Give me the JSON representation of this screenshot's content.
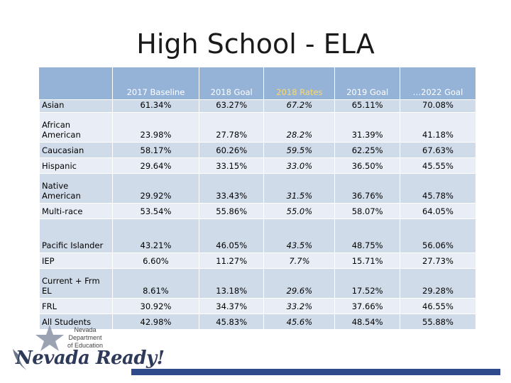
{
  "title": "High School - ELA",
  "table": {
    "headers": [
      "",
      "2017 Baseline",
      "2018 Goal",
      "2018 Rates",
      "2019 Goal",
      "…2022 Goal"
    ],
    "rows": [
      {
        "label": "Asian",
        "values": [
          "61.34%",
          "63.27%",
          "67.2%",
          "65.11%",
          "70.08%"
        ]
      },
      {
        "label": "African American",
        "values": [
          "23.98%",
          "27.78%",
          "28.2%",
          "31.39%",
          "41.18%"
        ]
      },
      {
        "label": "Caucasian",
        "values": [
          "58.17%",
          "60.26%",
          "59.5%",
          "62.25%",
          "67.63%"
        ]
      },
      {
        "label": "Hispanic",
        "values": [
          "29.64%",
          "33.15%",
          "33.0%",
          "36.50%",
          "45.55%"
        ]
      },
      {
        "label": "Native American",
        "values": [
          "29.92%",
          "33.43%",
          "31.5%",
          "36.76%",
          "45.78%"
        ]
      },
      {
        "label": "Multi-race",
        "values": [
          "53.54%",
          "55.86%",
          "55.0%",
          "58.07%",
          "64.05%"
        ]
      },
      {
        "label": "Pacific Islander",
        "values": [
          "43.21%",
          "46.05%",
          "43.5%",
          "48.75%",
          "56.06%"
        ]
      },
      {
        "label": "IEP",
        "values": [
          "6.60%",
          "11.27%",
          "7.7%",
          "15.71%",
          "27.73%"
        ]
      },
      {
        "label": "Current + Frm EL",
        "values": [
          "8.61%",
          "13.18%",
          "29.6%",
          "17.52%",
          "29.28%"
        ]
      },
      {
        "label": "FRL",
        "values": [
          "30.92%",
          "34.37%",
          "33.2%",
          "37.66%",
          "46.55%"
        ]
      },
      {
        "label": "All Students",
        "values": [
          "42.98%",
          "45.83%",
          "45.6%",
          "48.54%",
          "55.88%"
        ]
      }
    ]
  },
  "logo": {
    "org_line1": "Nevada Department",
    "org_line2": "of Education",
    "script": "Nevada Ready!",
    "icon": "star-icon"
  },
  "colors": {
    "header_bg": "#95b3d7",
    "rates_header": "#ffd966",
    "row_dark": "#d0dbea",
    "row_light": "#e9eef6",
    "bar": "#2e4a8a"
  }
}
